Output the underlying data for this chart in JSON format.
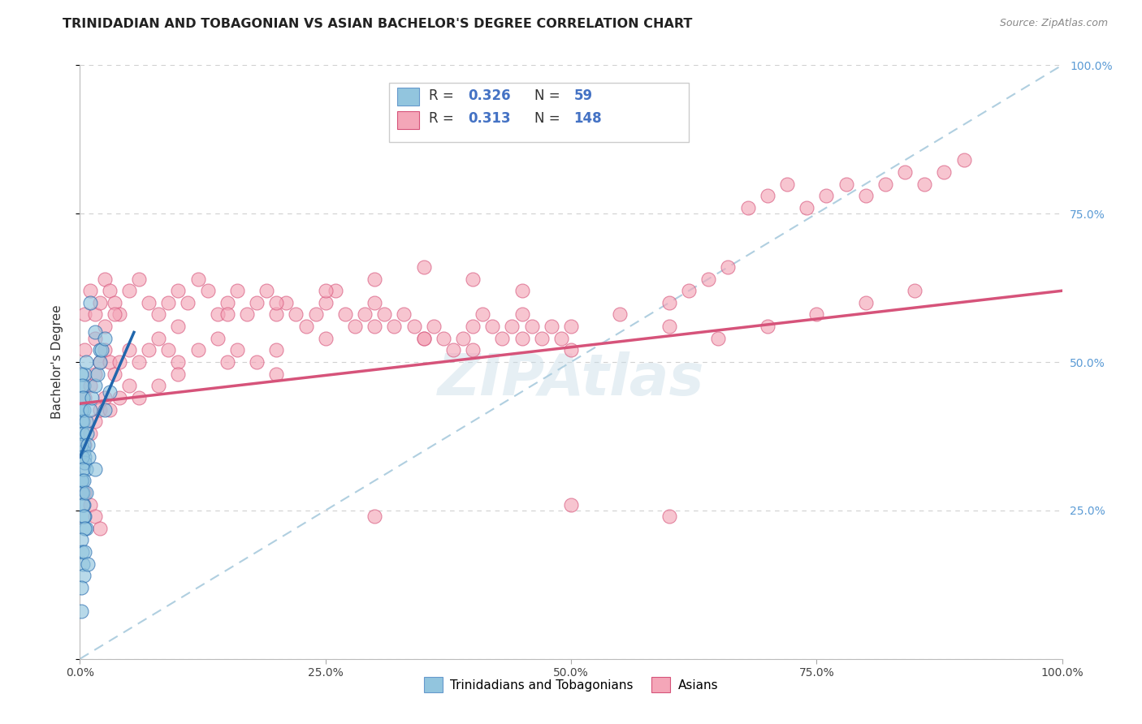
{
  "title": "TRINIDADIAN AND TOBAGONIAN VS ASIAN BACHELOR'S DEGREE CORRELATION CHART",
  "source": "Source: ZipAtlas.com",
  "ylabel": "Bachelor's Degree",
  "watermark": "ZIPAtlas",
  "blue_color": "#92c5de",
  "pink_color": "#f4a6b8",
  "line_blue": "#2166ac",
  "line_pink": "#d6537a",
  "diag_color": "#b0cfe0",
  "xlim": [
    0,
    1.0
  ],
  "ylim": [
    0,
    1.0
  ],
  "xticklabels": [
    "0.0%",
    "",
    "25.0%",
    "",
    "50.0%",
    "",
    "75.0%",
    "",
    "100.0%"
  ],
  "yticklabels_right": [
    "25.0%",
    "50.0%",
    "75.0%",
    "100.0%"
  ],
  "blue_scatter": [
    [
      0.002,
      0.42
    ],
    [
      0.003,
      0.44
    ],
    [
      0.004,
      0.46
    ],
    [
      0.005,
      0.48
    ],
    [
      0.006,
      0.5
    ],
    [
      0.002,
      0.38
    ],
    [
      0.003,
      0.4
    ],
    [
      0.004,
      0.36
    ],
    [
      0.005,
      0.34
    ],
    [
      0.006,
      0.32
    ],
    [
      0.002,
      0.3
    ],
    [
      0.003,
      0.28
    ],
    [
      0.004,
      0.26
    ],
    [
      0.005,
      0.24
    ],
    [
      0.006,
      0.22
    ],
    [
      0.001,
      0.42
    ],
    [
      0.002,
      0.4
    ],
    [
      0.003,
      0.38
    ],
    [
      0.004,
      0.35
    ],
    [
      0.005,
      0.33
    ],
    [
      0.001,
      0.3
    ],
    [
      0.002,
      0.28
    ],
    [
      0.003,
      0.26
    ],
    [
      0.004,
      0.24
    ],
    [
      0.005,
      0.22
    ],
    [
      0.001,
      0.48
    ],
    [
      0.002,
      0.46
    ],
    [
      0.003,
      0.44
    ],
    [
      0.004,
      0.42
    ],
    [
      0.006,
      0.4
    ],
    [
      0.001,
      0.36
    ],
    [
      0.002,
      0.34
    ],
    [
      0.003,
      0.32
    ],
    [
      0.004,
      0.3
    ],
    [
      0.006,
      0.28
    ],
    [
      0.001,
      0.2
    ],
    [
      0.002,
      0.18
    ],
    [
      0.003,
      0.16
    ],
    [
      0.004,
      0.14
    ],
    [
      0.001,
      0.12
    ],
    [
      0.001,
      0.08
    ],
    [
      0.01,
      0.6
    ],
    [
      0.02,
      0.52
    ],
    [
      0.015,
      0.55
    ],
    [
      0.005,
      0.18
    ],
    [
      0.008,
      0.16
    ],
    [
      0.025,
      0.42
    ],
    [
      0.03,
      0.45
    ],
    [
      0.007,
      0.38
    ],
    [
      0.008,
      0.36
    ],
    [
      0.009,
      0.34
    ],
    [
      0.01,
      0.42
    ],
    [
      0.012,
      0.44
    ],
    [
      0.015,
      0.46
    ],
    [
      0.018,
      0.48
    ],
    [
      0.02,
      0.5
    ],
    [
      0.022,
      0.52
    ],
    [
      0.025,
      0.54
    ],
    [
      0.015,
      0.32
    ]
  ],
  "pink_scatter": [
    [
      0.005,
      0.58
    ],
    [
      0.01,
      0.62
    ],
    [
      0.015,
      0.58
    ],
    [
      0.02,
      0.6
    ],
    [
      0.025,
      0.64
    ],
    [
      0.03,
      0.62
    ],
    [
      0.035,
      0.6
    ],
    [
      0.04,
      0.58
    ],
    [
      0.05,
      0.62
    ],
    [
      0.06,
      0.64
    ],
    [
      0.07,
      0.6
    ],
    [
      0.08,
      0.58
    ],
    [
      0.09,
      0.6
    ],
    [
      0.1,
      0.62
    ],
    [
      0.11,
      0.6
    ],
    [
      0.12,
      0.64
    ],
    [
      0.13,
      0.62
    ],
    [
      0.14,
      0.58
    ],
    [
      0.15,
      0.6
    ],
    [
      0.16,
      0.62
    ],
    [
      0.17,
      0.58
    ],
    [
      0.18,
      0.6
    ],
    [
      0.19,
      0.62
    ],
    [
      0.2,
      0.58
    ],
    [
      0.21,
      0.6
    ],
    [
      0.22,
      0.58
    ],
    [
      0.23,
      0.56
    ],
    [
      0.24,
      0.58
    ],
    [
      0.25,
      0.6
    ],
    [
      0.26,
      0.62
    ],
    [
      0.27,
      0.58
    ],
    [
      0.28,
      0.56
    ],
    [
      0.29,
      0.58
    ],
    [
      0.3,
      0.6
    ],
    [
      0.31,
      0.58
    ],
    [
      0.32,
      0.56
    ],
    [
      0.33,
      0.58
    ],
    [
      0.34,
      0.56
    ],
    [
      0.35,
      0.54
    ],
    [
      0.36,
      0.56
    ],
    [
      0.37,
      0.54
    ],
    [
      0.38,
      0.52
    ],
    [
      0.39,
      0.54
    ],
    [
      0.4,
      0.56
    ],
    [
      0.41,
      0.58
    ],
    [
      0.42,
      0.56
    ],
    [
      0.43,
      0.54
    ],
    [
      0.44,
      0.56
    ],
    [
      0.45,
      0.58
    ],
    [
      0.46,
      0.56
    ],
    [
      0.47,
      0.54
    ],
    [
      0.48,
      0.56
    ],
    [
      0.49,
      0.54
    ],
    [
      0.5,
      0.52
    ],
    [
      0.005,
      0.44
    ],
    [
      0.01,
      0.46
    ],
    [
      0.015,
      0.48
    ],
    [
      0.02,
      0.5
    ],
    [
      0.025,
      0.52
    ],
    [
      0.03,
      0.5
    ],
    [
      0.035,
      0.48
    ],
    [
      0.04,
      0.5
    ],
    [
      0.05,
      0.52
    ],
    [
      0.06,
      0.5
    ],
    [
      0.07,
      0.52
    ],
    [
      0.08,
      0.54
    ],
    [
      0.09,
      0.52
    ],
    [
      0.1,
      0.5
    ],
    [
      0.12,
      0.52
    ],
    [
      0.14,
      0.54
    ],
    [
      0.16,
      0.52
    ],
    [
      0.18,
      0.5
    ],
    [
      0.2,
      0.52
    ],
    [
      0.25,
      0.54
    ],
    [
      0.3,
      0.56
    ],
    [
      0.35,
      0.54
    ],
    [
      0.4,
      0.52
    ],
    [
      0.45,
      0.54
    ],
    [
      0.5,
      0.56
    ],
    [
      0.55,
      0.58
    ],
    [
      0.6,
      0.6
    ],
    [
      0.62,
      0.62
    ],
    [
      0.64,
      0.64
    ],
    [
      0.66,
      0.66
    ],
    [
      0.68,
      0.76
    ],
    [
      0.7,
      0.78
    ],
    [
      0.72,
      0.8
    ],
    [
      0.74,
      0.76
    ],
    [
      0.76,
      0.78
    ],
    [
      0.78,
      0.8
    ],
    [
      0.8,
      0.78
    ],
    [
      0.82,
      0.8
    ],
    [
      0.84,
      0.82
    ],
    [
      0.86,
      0.8
    ],
    [
      0.88,
      0.82
    ],
    [
      0.9,
      0.84
    ],
    [
      0.005,
      0.36
    ],
    [
      0.01,
      0.38
    ],
    [
      0.015,
      0.4
    ],
    [
      0.02,
      0.42
    ],
    [
      0.025,
      0.44
    ],
    [
      0.03,
      0.42
    ],
    [
      0.04,
      0.44
    ],
    [
      0.05,
      0.46
    ],
    [
      0.06,
      0.44
    ],
    [
      0.08,
      0.46
    ],
    [
      0.1,
      0.48
    ],
    [
      0.15,
      0.5
    ],
    [
      0.2,
      0.48
    ],
    [
      0.005,
      0.28
    ],
    [
      0.01,
      0.26
    ],
    [
      0.015,
      0.24
    ],
    [
      0.02,
      0.22
    ],
    [
      0.3,
      0.24
    ],
    [
      0.5,
      0.26
    ],
    [
      0.6,
      0.24
    ],
    [
      0.1,
      0.56
    ],
    [
      0.15,
      0.58
    ],
    [
      0.2,
      0.6
    ],
    [
      0.25,
      0.62
    ],
    [
      0.3,
      0.64
    ],
    [
      0.35,
      0.66
    ],
    [
      0.4,
      0.64
    ],
    [
      0.45,
      0.62
    ],
    [
      0.005,
      0.52
    ],
    [
      0.015,
      0.54
    ],
    [
      0.025,
      0.56
    ],
    [
      0.035,
      0.58
    ],
    [
      0.6,
      0.56
    ],
    [
      0.65,
      0.54
    ],
    [
      0.7,
      0.56
    ],
    [
      0.75,
      0.58
    ],
    [
      0.8,
      0.6
    ],
    [
      0.85,
      0.62
    ]
  ],
  "pink_line_x": [
    0.0,
    1.0
  ],
  "pink_line_y": [
    0.43,
    0.62
  ],
  "blue_line_x": [
    0.0,
    0.055
  ],
  "blue_line_y": [
    0.34,
    0.55
  ],
  "title_fontsize": 11.5,
  "tick_fontsize": 10,
  "label_fontsize": 11,
  "background": "#ffffff",
  "grid_color": "#d0d0d0"
}
